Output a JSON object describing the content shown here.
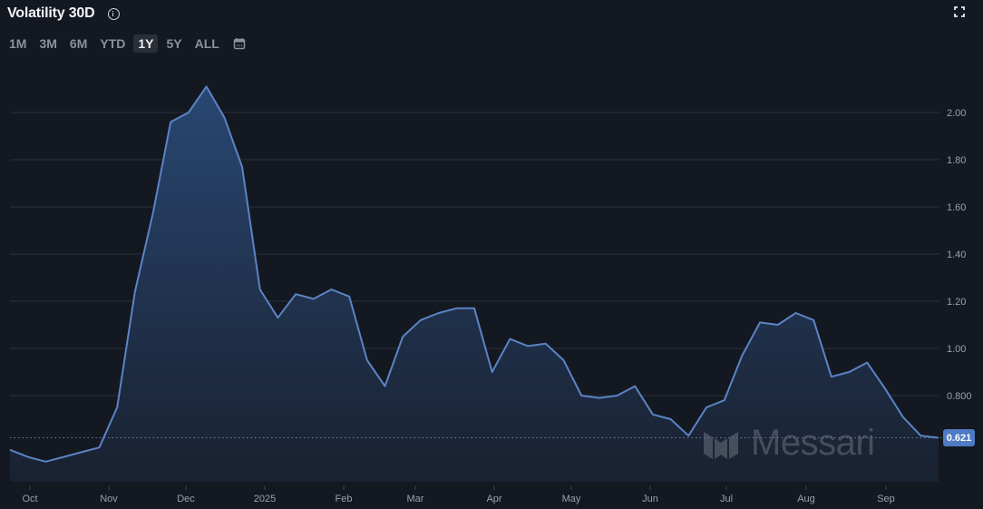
{
  "header": {
    "title": "Volatility 30D",
    "info_icon": "info-icon",
    "expand_icon": "fullscreen-icon"
  },
  "range_selector": {
    "options": [
      "1M",
      "3M",
      "6M",
      "YTD",
      "1Y",
      "5Y",
      "ALL"
    ],
    "active": "1Y",
    "calendar_icon": "calendar-icon"
  },
  "current_value_label": "0.621",
  "watermark": "Messari",
  "colors": {
    "background": "#141821",
    "line": "#5b84c4",
    "fill_top": "#2a4a78",
    "price_tag": "#4f7ac4",
    "grid": "#2a2f3a"
  },
  "chart_data": {
    "type": "area",
    "title": "Volatility 30D",
    "xlabel": "",
    "ylabel": "",
    "y_ticks": [
      "2.00",
      "1.80",
      "1.60",
      "1.40",
      "1.20",
      "1.00",
      "0.800"
    ],
    "x_ticks": [
      "Oct",
      "Nov",
      "Dec",
      "2025",
      "Feb",
      "Mar",
      "Apr",
      "May",
      "Jun",
      "Jul",
      "Aug",
      "Sep"
    ],
    "ylim": [
      0.43,
      2.1
    ],
    "grid": true,
    "legend": "none",
    "last_value": 0.621,
    "series": [
      {
        "name": "Volatility 30D",
        "values": [
          0.57,
          0.54,
          0.52,
          0.54,
          0.56,
          0.58,
          0.75,
          1.24,
          1.57,
          1.96,
          2.0,
          2.11,
          1.98,
          1.77,
          1.25,
          1.13,
          1.23,
          1.21,
          1.25,
          1.22,
          0.95,
          0.84,
          1.05,
          1.12,
          1.15,
          1.17,
          1.17,
          0.9,
          1.04,
          1.01,
          1.02,
          0.95,
          0.8,
          0.79,
          0.8,
          0.84,
          0.72,
          0.7,
          0.63,
          0.75,
          0.78,
          0.97,
          1.11,
          1.1,
          1.15,
          1.12,
          0.88,
          0.9,
          0.94,
          0.83,
          0.71,
          0.63,
          0.621
        ]
      }
    ]
  }
}
